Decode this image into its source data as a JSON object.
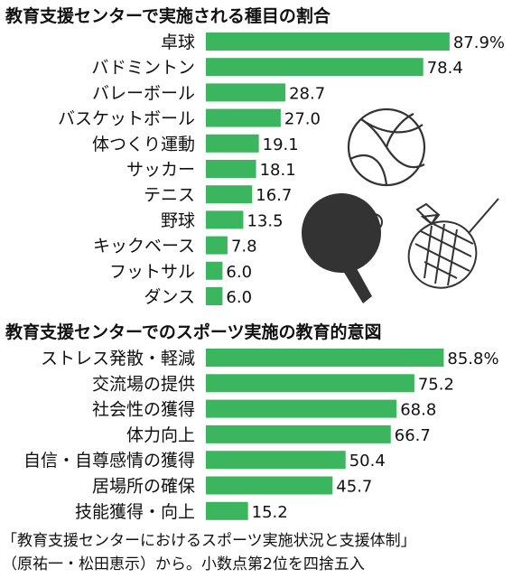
{
  "colors": {
    "bar": "#3cb55f",
    "text": "#111111",
    "illustration": "#333333"
  },
  "footer": {
    "line1": "「教育支援センターにおけるスポーツ実施状況と支援体制」",
    "line2": "（原祐一・松田恵示）から。小数点第2位を四捨五入"
  },
  "chart_data": [
    {
      "type": "bar",
      "orientation": "horizontal",
      "title": "教育支援センターで実施される種目の割合",
      "categories": [
        "卓球",
        "バドミントン",
        "バレーボール",
        "バスケットボール",
        "体つくり運動",
        "サッカー",
        "テニス",
        "野球",
        "キックベース",
        "フットサル",
        "ダンス"
      ],
      "values": [
        87.9,
        78.4,
        28.7,
        27.0,
        19.1,
        18.1,
        16.7,
        13.5,
        7.8,
        6.0,
        6.0
      ],
      "value_labels": [
        "87.9%",
        "78.4",
        "28.7",
        "27.0",
        "19.1",
        "18.1",
        "16.7",
        "13.5",
        "7.8",
        "6.0",
        "6.0"
      ],
      "xlim": [
        0,
        100
      ],
      "grid": false
    },
    {
      "type": "bar",
      "orientation": "horizontal",
      "title": "教育支援センターでのスポーツ実施の教育的意図",
      "categories": [
        "ストレス発散・軽減",
        "交流場の提供",
        "社会性の獲得",
        "体力向上",
        "自信・自尊感情の獲得",
        "居場所の確保",
        "技能獲得・向上"
      ],
      "values": [
        85.8,
        75.2,
        68.8,
        66.7,
        50.4,
        45.7,
        15.2
      ],
      "value_labels": [
        "85.8%",
        "75.2",
        "68.8",
        "66.7",
        "50.4",
        "45.7",
        "15.2"
      ],
      "xlim": [
        0,
        100
      ],
      "grid": false
    }
  ]
}
